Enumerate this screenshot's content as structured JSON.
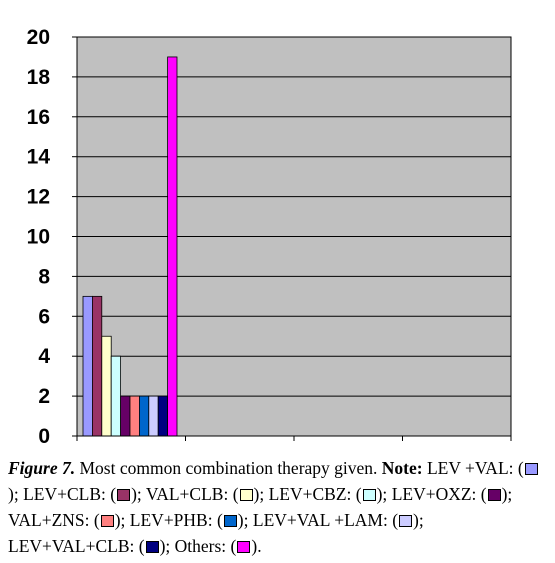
{
  "chart_data": {
    "type": "bar",
    "y_ticks": [
      "0",
      "2",
      "4",
      "6",
      "8",
      "10",
      "12",
      "14",
      "16",
      "18",
      "20"
    ],
    "ylim": [
      0,
      20
    ],
    "grid": true,
    "series": [
      {
        "color": "#9999ff",
        "values": [
          7
        ]
      },
      {
        "color": "#993366",
        "values": [
          7
        ]
      },
      {
        "color": "#ffffcc",
        "values": [
          5
        ]
      },
      {
        "color": "#ccffff",
        "values": [
          4
        ]
      },
      {
        "color": "#660066",
        "values": [
          2
        ]
      },
      {
        "color": "#ff8080",
        "values": [
          2
        ]
      },
      {
        "color": "#0066cc",
        "values": [
          2
        ]
      },
      {
        "color": "#ccccff",
        "values": [
          2
        ]
      },
      {
        "color": "#000080",
        "values": [
          2
        ]
      },
      {
        "color": "#ff00ff",
        "values": [
          19
        ]
      }
    ],
    "plot_background": "#c0c0c0"
  },
  "caption": {
    "figure_label": "Figure 7.",
    "text": "Most common combination therapy given.",
    "note_label": "Note:",
    "items": [
      {
        "label": "LEV +VAL: (",
        "color": "#9999ff",
        "tail": ");"
      },
      {
        "label": "LEV+CLB: (",
        "color": "#993366",
        "tail": ");"
      },
      {
        "label": "VAL+CLB: (",
        "color": "#ffffcc",
        "tail": ");"
      },
      {
        "label": "LEV+CBZ: (",
        "color": "#ccffff",
        "tail": ");"
      },
      {
        "label": "LEV+OXZ: (",
        "color": "#660066",
        "tail": ");"
      },
      {
        "label": "VAL+ZNS: (",
        "color": "#ff8080",
        "tail": ");"
      },
      {
        "label": "LEV+PHB: (",
        "color": "#0066cc",
        "tail": ");"
      },
      {
        "label": "LEV+VAL +LAM: (",
        "color": "#ccccff",
        "tail": ");"
      },
      {
        "label": "LEV+VAL+CLB: (",
        "color": "#000080",
        "tail": ");"
      },
      {
        "label": "Others: (",
        "color": "#ff00ff",
        "tail": ")."
      }
    ]
  }
}
